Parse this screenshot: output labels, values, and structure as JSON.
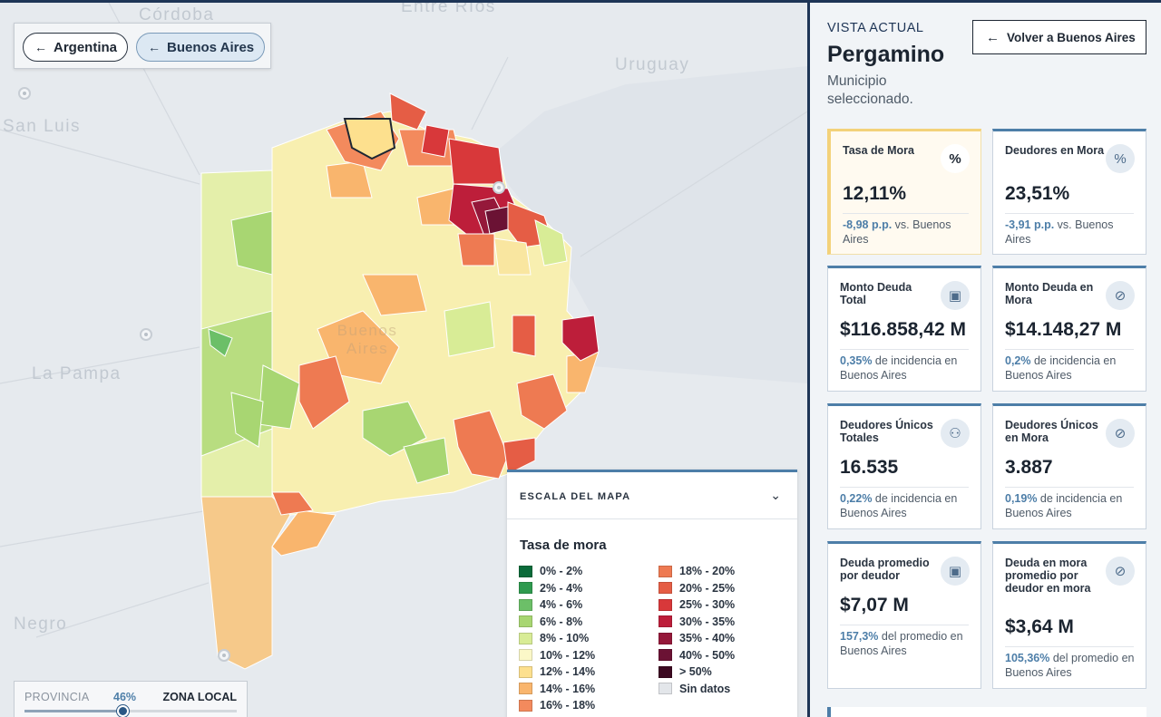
{
  "map": {
    "place_labels": {
      "cordoba": "Córdoba",
      "entre_rios": "Entre Ríos",
      "uruguay": "Uruguay",
      "san_luis": "San Luis",
      "la_pampa": "La Pampa",
      "negro": "Negro",
      "buenos_aires": "Buenos Aires"
    },
    "breadcrumbs": [
      {
        "label": "Argentina"
      },
      {
        "label": "Buenos Aires"
      }
    ],
    "slider": {
      "left_label": "PROVINCIA",
      "value_label": "46%",
      "value": 0.46,
      "right_label": "ZONA LOCAL"
    }
  },
  "legend": {
    "title": "ESCALA DEL MAPA",
    "subtitle": "Tasa de mora",
    "items": [
      {
        "label": "0% - 2%",
        "color": "#0b6b3a"
      },
      {
        "label": "2% - 4%",
        "color": "#2f9a4f"
      },
      {
        "label": "4% - 6%",
        "color": "#6cbf68"
      },
      {
        "label": "6% - 8%",
        "color": "#a8d672"
      },
      {
        "label": "8% - 10%",
        "color": "#d8ec96"
      },
      {
        "label": "10% - 12%",
        "color": "#fbf8c8"
      },
      {
        "label": "12% - 14%",
        "color": "#fde08e"
      },
      {
        "label": "14% - 16%",
        "color": "#f9b56d"
      },
      {
        "label": "16% - 18%",
        "color": "#f38a5d"
      },
      {
        "label": "18% - 20%",
        "color": "#ee7a52"
      },
      {
        "label": "20% - 25%",
        "color": "#e55d45"
      },
      {
        "label": "25% - 30%",
        "color": "#d8383a"
      },
      {
        "label": "30% - 35%",
        "color": "#bd1e3a"
      },
      {
        "label": "35% - 40%",
        "color": "#95183a"
      },
      {
        "label": "40% - 50%",
        "color": "#6b1234"
      },
      {
        "label": "> 50%",
        "color": "#3d0a22"
      },
      {
        "label": "Sin datos",
        "color": "#e3e6ea"
      }
    ]
  },
  "panel": {
    "vista_label": "VISTA ACTUAL",
    "name": "Pergamino",
    "subtitle": "Municipio seleccionado.",
    "back_button": "Volver a Buenos Aires",
    "cards": [
      {
        "title": "Tasa de Mora",
        "icon": "percent-icon",
        "value": "12,11%",
        "note_bold": "-8,98 p.p.",
        "note": " vs. Buenos Aires"
      },
      {
        "title": "Deudores en Mora",
        "icon": "percent-icon",
        "value": "23,51%",
        "note_bold": "-3,91 p.p.",
        "note": " vs. Buenos Aires"
      },
      {
        "title": "Monto Deuda Total",
        "icon": "money-icon",
        "value": "$116.858,42 M",
        "note_bold": "0,35%",
        "note": " de incidencia en Buenos Aires"
      },
      {
        "title": "Monto Deuda en Mora",
        "icon": "money-off-icon",
        "value": "$14.148,27 M",
        "note_bold": "0,2%",
        "note": " de incidencia en Buenos Aires"
      },
      {
        "title": "Deudores Únicos Totales",
        "icon": "people-icon",
        "value": "16.535",
        "note_bold": "0,22%",
        "note": " de incidencia en Buenos Aires"
      },
      {
        "title": "Deudores Únicos en Mora",
        "icon": "person-off-icon",
        "value": "3.887",
        "note_bold": "0,19%",
        "note": " de incidencia en Buenos Aires"
      },
      {
        "title": "Deuda promedio por deudor",
        "icon": "money-icon",
        "value": "$7,07 M",
        "note_bold": "157,3%",
        "note": " del promedio en Buenos Aires"
      },
      {
        "title": "Deuda en mora promedio por deudor en mora",
        "icon": "money-off-icon",
        "value": "$3,64 M",
        "note_bold": "105,36%",
        "note": " del promedio en Buenos Aires"
      }
    ]
  }
}
